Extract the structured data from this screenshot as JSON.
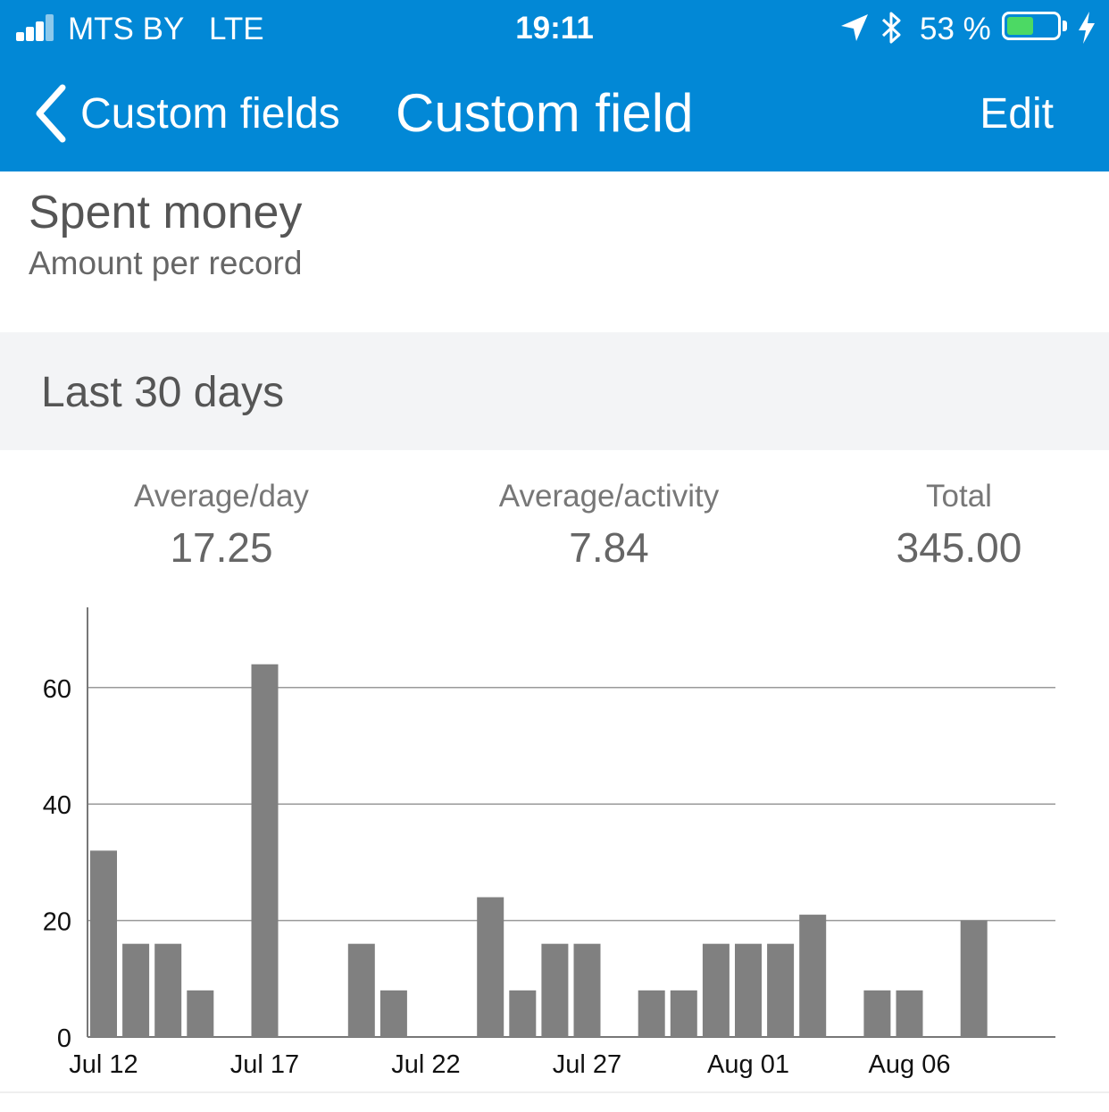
{
  "status_bar": {
    "carrier": "MTS BY",
    "network": "LTE",
    "time": "19:11",
    "battery_text": "53 %",
    "battery_level": 0.53,
    "battery_fill_color": "#4cd964"
  },
  "nav": {
    "back_label": "Custom fields",
    "title": "Custom field",
    "edit_label": "Edit",
    "bar_color": "#0288d6"
  },
  "field": {
    "name": "Spent money",
    "type": "Amount per record"
  },
  "section": {
    "title": "Last 30 days"
  },
  "stats": [
    {
      "label": "Average/day",
      "value": "17.25"
    },
    {
      "label": "Average/activity",
      "value": "7.84"
    },
    {
      "label": "Total",
      "value": "345.00"
    }
  ],
  "chart_data": {
    "type": "bar",
    "categories": [
      "Jul 12",
      "Jul 13",
      "Jul 14",
      "Jul 15",
      "Jul 16",
      "Jul 17",
      "Jul 18",
      "Jul 19",
      "Jul 20",
      "Jul 21",
      "Jul 22",
      "Jul 23",
      "Jul 24",
      "Jul 25",
      "Jul 26",
      "Jul 27",
      "Jul 28",
      "Jul 29",
      "Jul 30",
      "Jul 31",
      "Aug 01",
      "Aug 02",
      "Aug 03",
      "Aug 04",
      "Aug 05",
      "Aug 06",
      "Aug 07",
      "Aug 08",
      "Aug 09",
      "Aug 10"
    ],
    "values": [
      32,
      16,
      16,
      8,
      0,
      64,
      0,
      0,
      16,
      8,
      0,
      0,
      24,
      8,
      16,
      16,
      0,
      8,
      8,
      16,
      16,
      16,
      21,
      0,
      8,
      8,
      0,
      20,
      0,
      0
    ],
    "x_tick_labels": [
      "Jul 12",
      "Jul 17",
      "Jul 22",
      "Jul 27",
      "Aug 01",
      "Aug 06"
    ],
    "y_ticks": [
      0,
      20,
      40,
      60
    ],
    "ylim": [
      0,
      73
    ],
    "grid": true,
    "bar_color": "#808080"
  }
}
